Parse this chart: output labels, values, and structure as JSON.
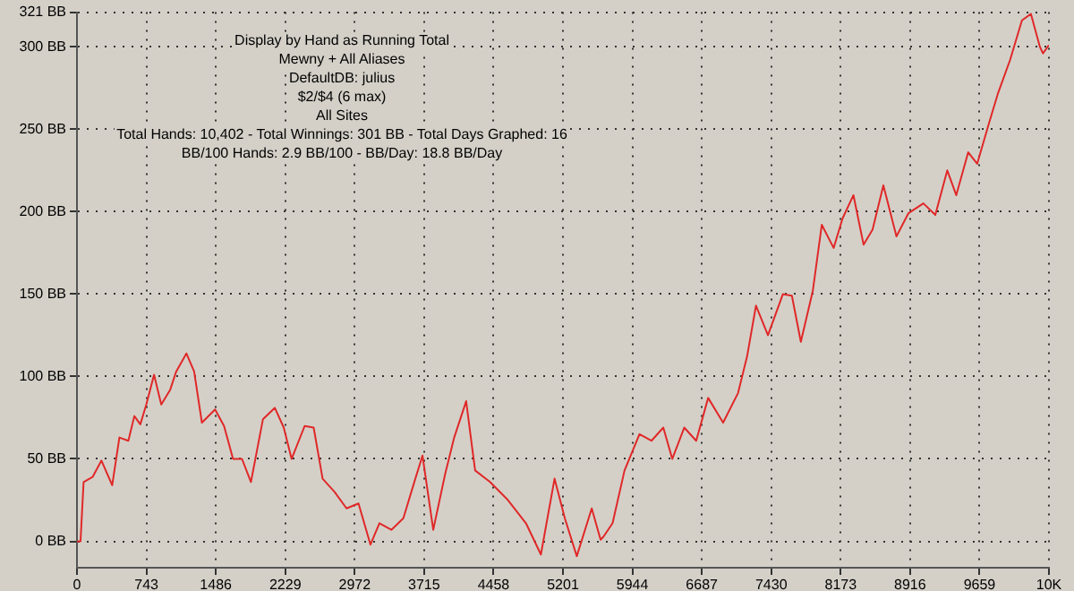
{
  "chart_data": {
    "type": "line",
    "title": "Display by Hand as Running Total",
    "annotations": [
      "Mewny + All Aliases",
      "DefaultDB: julius",
      "$2/$4 (6 max)",
      "All Sites",
      "Total Hands: 10,402 - Total Winnings: 301 BB - Total Days Graphed: 16",
      "BB/100 Hands: 2.9 BB/100 - BB/Day: 18.8 BB/Day"
    ],
    "series": [
      {
        "color": "#e02828",
        "x": [
          0,
          38,
          71,
          167,
          262,
          377,
          454,
          550,
          614,
          678,
          742,
          825,
          902,
          998,
          1062,
          1171,
          1254,
          1337,
          1478,
          1574,
          1670,
          1766,
          1862,
          1990,
          2117,
          2213,
          2297,
          2374,
          2437,
          2533,
          2629,
          2757,
          2885,
          3013,
          3141,
          3237,
          3365,
          3493,
          3621,
          3698,
          3813,
          3941,
          4037,
          4165,
          4261,
          4421,
          4613,
          4805,
          4965,
          5111,
          5221,
          5349,
          5509,
          5604,
          5637,
          5732,
          5860,
          6020,
          6148,
          6275,
          6371,
          6499,
          6627,
          6755,
          6915,
          7075,
          7171,
          7267,
          7395,
          7555,
          7651,
          7747,
          7875,
          7971,
          8098,
          8194,
          8310,
          8418,
          8514,
          8630,
          8770,
          8898,
          9058,
          9186,
          9314,
          9410,
          9538,
          9634,
          9762,
          9858,
          9986,
          10113,
          10209,
          10305,
          10338,
          10402
        ],
        "values": [
          0,
          0,
          36,
          39,
          49,
          34,
          63,
          61,
          76,
          71,
          83,
          101,
          83,
          92,
          103,
          114,
          103,
          72,
          80,
          70,
          50,
          50,
          36,
          74,
          81,
          69,
          50,
          61,
          70,
          69,
          38,
          30,
          20,
          23,
          -2,
          11,
          7,
          14,
          38,
          52,
          7,
          41,
          63,
          85,
          43,
          36,
          25,
          11,
          -8,
          38,
          14,
          -9,
          20,
          1,
          3,
          11,
          43,
          65,
          61,
          69,
          50,
          69,
          61,
          87,
          72,
          90,
          112,
          143,
          125,
          150,
          149,
          121,
          152,
          192,
          178,
          196,
          210,
          180,
          189,
          216,
          185,
          199,
          205,
          198,
          225,
          210,
          236,
          229,
          254,
          272,
          292,
          316,
          320,
          300,
          296,
          301
        ]
      }
    ],
    "xlim": [
      0,
      10402
    ],
    "xticks": [
      0,
      743,
      1486,
      2229,
      2972,
      3715,
      4458,
      5201,
      5944,
      6687,
      7430,
      8173,
      8916,
      9659,
      {
        "value": 10402,
        "label": "10K"
      }
    ],
    "ylim": [
      -16,
      321
    ],
    "yticks": [
      {
        "value": 0,
        "label": "0 BB"
      },
      {
        "value": 50,
        "label": "50 BB"
      },
      {
        "value": 100,
        "label": "100 BB"
      },
      {
        "value": 150,
        "label": "150 BB"
      },
      {
        "value": 200,
        "label": "200 BB"
      },
      {
        "value": 250,
        "label": "250 BB"
      },
      {
        "value": 300,
        "label": "300 BB"
      },
      {
        "value": 321,
        "label": "321 BB"
      }
    ],
    "grid": true,
    "legend": false,
    "marker": "none",
    "line_style": "solid"
  }
}
